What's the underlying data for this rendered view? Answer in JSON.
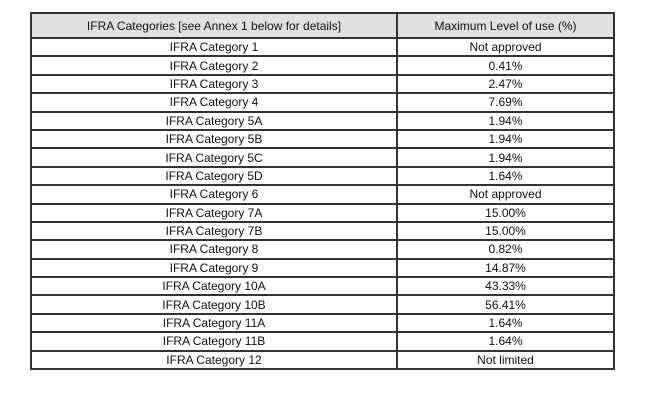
{
  "table": {
    "columns": [
      "IFRA Categories [see Annex 1 below for details]",
      "Maximum Level of use (%)"
    ],
    "rows": [
      {
        "category": "IFRA Category 1",
        "max_level": "Not approved"
      },
      {
        "category": "IFRA Category 2",
        "max_level": "0.41%"
      },
      {
        "category": "IFRA Category 3",
        "max_level": "2.47%"
      },
      {
        "category": "IFRA Category 4",
        "max_level": "7.69%"
      },
      {
        "category": "IFRA Category 5A",
        "max_level": "1.94%"
      },
      {
        "category": "IFRA Category 5B",
        "max_level": "1.94%"
      },
      {
        "category": "IFRA Category 5C",
        "max_level": "1.94%"
      },
      {
        "category": "IFRA Category 5D",
        "max_level": "1.64%"
      },
      {
        "category": "IFRA Category 6",
        "max_level": "Not approved"
      },
      {
        "category": "IFRA Category 7A",
        "max_level": "15.00%"
      },
      {
        "category": "IFRA Category 7B",
        "max_level": "15.00%"
      },
      {
        "category": "IFRA Category 8",
        "max_level": "0.82%"
      },
      {
        "category": "IFRA Category 9",
        "max_level": "14.87%"
      },
      {
        "category": "IFRA Category 10A",
        "max_level": "43.33%"
      },
      {
        "category": "IFRA Category 10B",
        "max_level": "56.41%"
      },
      {
        "category": "IFRA Category 11A",
        "max_level": "1.64%"
      },
      {
        "category": "IFRA Category 11B",
        "max_level": "1.64%"
      },
      {
        "category": "IFRA Category 12",
        "max_level": "Not limited"
      }
    ],
    "colors": {
      "header_bg": "#e0e0e0",
      "border": "#333333",
      "text": "#111111"
    }
  }
}
